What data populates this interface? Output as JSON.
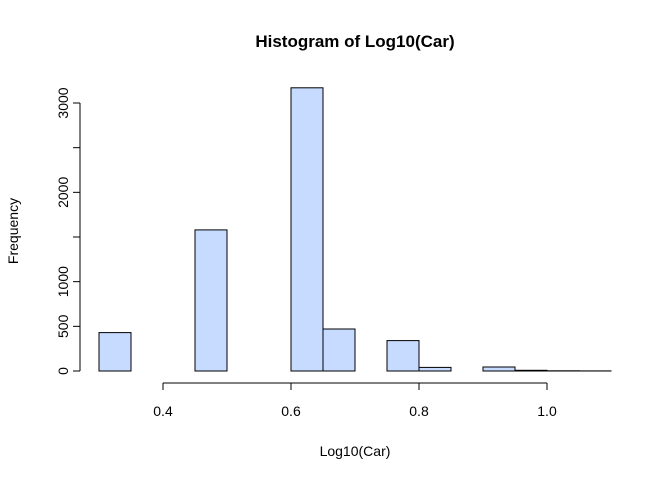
{
  "chart_data": {
    "type": "bar",
    "title": "Histogram of Log10(Car)",
    "xlabel": "Log10(Car)",
    "ylabel": "Frequency",
    "bar_color": "#c6dbff",
    "bins": [
      {
        "x0": 0.3,
        "x1": 0.35,
        "count": 430
      },
      {
        "x0": 0.35,
        "x1": 0.4,
        "count": 0
      },
      {
        "x0": 0.4,
        "x1": 0.45,
        "count": 0
      },
      {
        "x0": 0.45,
        "x1": 0.5,
        "count": 1580
      },
      {
        "x0": 0.5,
        "x1": 0.55,
        "count": 0
      },
      {
        "x0": 0.55,
        "x1": 0.6,
        "count": 0
      },
      {
        "x0": 0.6,
        "x1": 0.65,
        "count": 3170
      },
      {
        "x0": 0.65,
        "x1": 0.7,
        "count": 470
      },
      {
        "x0": 0.7,
        "x1": 0.75,
        "count": 0
      },
      {
        "x0": 0.75,
        "x1": 0.8,
        "count": 340
      },
      {
        "x0": 0.8,
        "x1": 0.85,
        "count": 40
      },
      {
        "x0": 0.85,
        "x1": 0.9,
        "count": 0
      },
      {
        "x0": 0.9,
        "x1": 0.95,
        "count": 45
      },
      {
        "x0": 0.95,
        "x1": 1.0,
        "count": 8
      },
      {
        "x0": 1.0,
        "x1": 1.05,
        "count": 2
      },
      {
        "x0": 1.05,
        "x1": 1.1,
        "count": 1
      }
    ],
    "xlim": [
      0.3,
      1.1
    ],
    "ylim": [
      0,
      3170
    ],
    "x_ticks": [
      0.4,
      0.6,
      0.8,
      1.0
    ],
    "x_tick_labels": [
      "0.4",
      "0.6",
      "0.8",
      "1.0"
    ],
    "y_ticks": [
      0,
      500,
      1000,
      1500,
      2000,
      2500,
      3000
    ],
    "y_tick_labels": [
      "0",
      "500",
      "1000",
      "",
      "2000",
      "",
      "3000"
    ],
    "grid": false
  }
}
